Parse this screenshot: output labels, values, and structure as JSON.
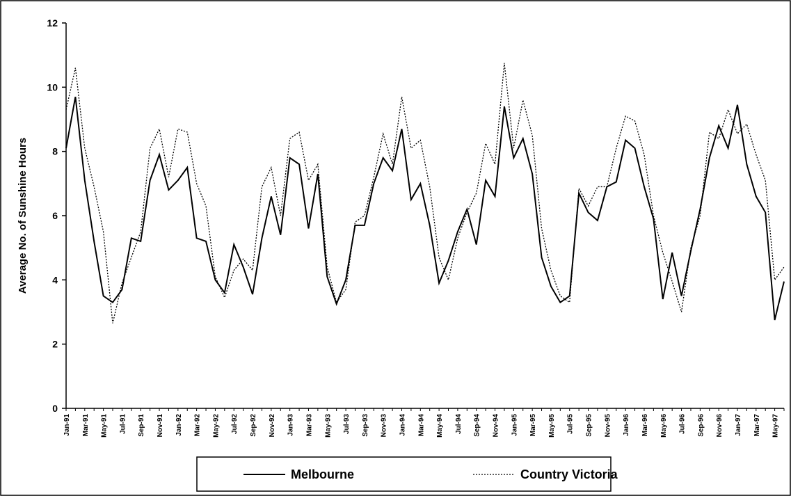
{
  "chart_data": {
    "type": "line",
    "y_label": "Average No. of Sunshine Hours",
    "categories": [
      "Jan-91",
      null,
      "Mar-91",
      null,
      "May-91",
      null,
      "Jul-91",
      null,
      "Sep-91",
      null,
      "Nov-91",
      null,
      "Jan-92",
      null,
      "Mar-92",
      null,
      "May-92",
      null,
      "Jul-92",
      null,
      "Sep-92",
      null,
      "Nov-92",
      null,
      "Jan-93",
      null,
      "Mar-93",
      null,
      "May-93",
      null,
      "Jul-93",
      null,
      "Sep-93",
      null,
      "Nov-93",
      null,
      "Jan-94",
      null,
      "Mar-94",
      null,
      "May-94",
      null,
      "Jul-94",
      null,
      "Sep-94",
      null,
      "Nov-94",
      null,
      "Jan-95",
      null,
      "Mar-95",
      null,
      "May-95",
      null,
      "Jul-95",
      null,
      "Sep-95",
      null,
      "Nov-95",
      null,
      "Jan-96",
      null,
      "Mar-96",
      null,
      "May-96",
      null,
      "Jul-96",
      null,
      "Sep-96",
      null,
      "Nov-96",
      null,
      "Jan-97",
      null,
      "Mar-97",
      null,
      "May-97",
      null
    ],
    "series": [
      {
        "name": "Melbourne",
        "color": "#000000",
        "dash": "solid",
        "values": [
          8.1,
          9.7,
          7.1,
          5.2,
          3.5,
          3.3,
          3.7,
          5.3,
          5.2,
          7.1,
          7.9,
          6.8,
          7.1,
          7.5,
          5.3,
          5.2,
          4.0,
          3.6,
          5.1,
          4.4,
          3.55,
          5.3,
          6.6,
          5.4,
          7.8,
          7.6,
          5.6,
          7.3,
          4.1,
          3.25,
          4.0,
          5.7,
          5.7,
          7.0,
          7.8,
          7.4,
          8.7,
          6.5,
          7.0,
          5.7,
          3.9,
          4.6,
          5.5,
          6.2,
          5.1,
          7.1,
          6.6,
          9.4,
          7.8,
          8.4,
          7.3,
          4.7,
          3.8,
          3.3,
          3.5,
          6.7,
          6.1,
          5.85,
          6.9,
          7.05,
          8.35,
          8.1,
          6.9,
          5.9,
          3.4,
          4.85,
          3.5,
          4.9,
          6.2,
          7.8,
          8.8,
          8.1,
          9.45,
          7.6,
          6.6,
          6.1,
          2.75,
          3.95
        ]
      },
      {
        "name": "Country Victoria",
        "color": "#000000",
        "dash": "dotted",
        "values": [
          9.3,
          10.6,
          8.1,
          6.9,
          5.5,
          2.65,
          3.9,
          4.7,
          5.5,
          8.1,
          8.7,
          7.2,
          8.7,
          8.6,
          7.0,
          6.3,
          4.1,
          3.45,
          4.3,
          4.65,
          4.3,
          6.9,
          7.5,
          6.0,
          8.4,
          8.6,
          7.1,
          7.6,
          4.4,
          3.3,
          3.7,
          5.8,
          6.0,
          7.2,
          8.55,
          7.6,
          9.7,
          8.1,
          8.35,
          6.9,
          4.7,
          4.0,
          5.3,
          6.1,
          6.7,
          8.25,
          7.6,
          10.75,
          8.1,
          9.6,
          8.5,
          5.6,
          4.3,
          3.5,
          3.3,
          6.85,
          6.3,
          6.9,
          6.9,
          8.1,
          9.1,
          8.95,
          7.9,
          6.0,
          4.85,
          3.95,
          3.0,
          5.0,
          6.0,
          8.6,
          8.4,
          9.3,
          8.55,
          8.85,
          7.9,
          7.1,
          4.0,
          4.4
        ]
      }
    ],
    "ylim": [
      0,
      12
    ],
    "yticks": [
      0,
      2,
      4,
      6,
      8,
      10,
      12
    ],
    "grid": false,
    "legend": "bottom"
  }
}
